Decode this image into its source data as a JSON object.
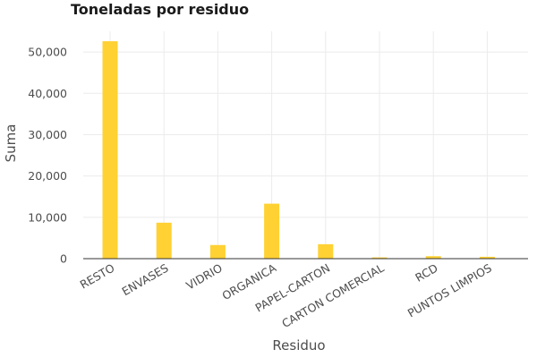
{
  "chart_data": {
    "type": "bar",
    "title": "Toneladas por residuo",
    "xlabel": "Residuo",
    "ylabel": "Suma",
    "categories": [
      "RESTO",
      "ENVASES",
      "VIDRIO",
      "ORGANICA",
      "PAPEL-CARTON",
      "CARTON COMERCIAL",
      "RCD",
      "PUNTOS LIMPIOS"
    ],
    "values": [
      52600,
      8700,
      3300,
      13300,
      3500,
      300,
      600,
      450
    ],
    "yticks": [
      0,
      10000,
      20000,
      30000,
      40000,
      50000
    ],
    "ytick_labels": [
      "0",
      "10,000",
      "20,000",
      "30,000",
      "40,000",
      "50,000"
    ],
    "ylim": [
      0,
      55000
    ],
    "grid": true,
    "bar_color": "#FFD133"
  }
}
